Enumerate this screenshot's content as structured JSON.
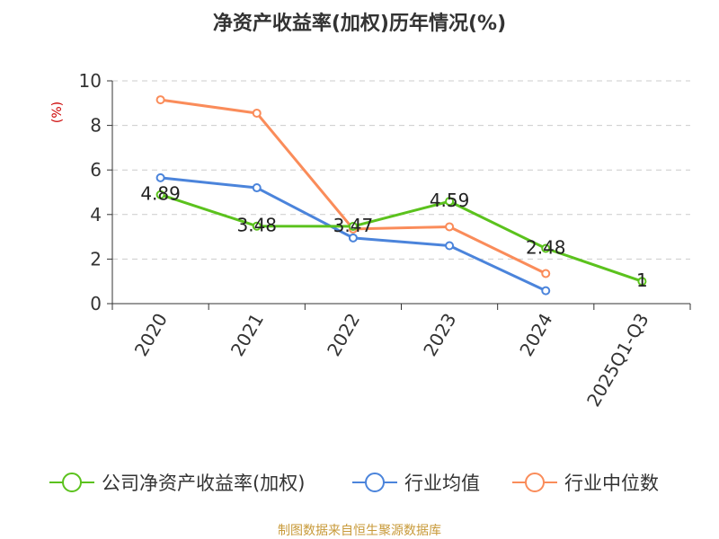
{
  "chart_data": {
    "type": "line",
    "title": "净资产收益率(加权)历年情况(%)",
    "ylabel": "(%)",
    "xlabel": "",
    "ylim": [
      0,
      10
    ],
    "yticks": [
      0,
      2,
      4,
      6,
      8,
      10
    ],
    "categories": [
      "2020",
      "2021",
      "2022",
      "2023",
      "2024",
      "2025Q1-Q3"
    ],
    "series": [
      {
        "name": "公司净资产收益率(加权)",
        "color": "#5bc21d",
        "values": [
          4.89,
          3.48,
          3.47,
          4.59,
          2.48,
          1
        ],
        "labels": [
          "4.89",
          "3.48",
          "3.47",
          "4.59",
          "2.48",
          "1"
        ]
      },
      {
        "name": "行业均值",
        "color": "#4b84db",
        "values": [
          5.65,
          5.2,
          2.95,
          2.6,
          0.58,
          null
        ]
      },
      {
        "name": "行业中位数",
        "color": "#fa8c5a",
        "values": [
          9.15,
          8.55,
          3.35,
          3.45,
          1.35,
          null
        ]
      }
    ],
    "grid": true,
    "legend_position": "bottom"
  },
  "footer": {
    "source": "制图数据来自恒生聚源数据库",
    "source_color": "#c89a3a"
  },
  "colors": {
    "axis": "#333333",
    "grid": "#cccccc",
    "ylabel": "#cc0000"
  }
}
